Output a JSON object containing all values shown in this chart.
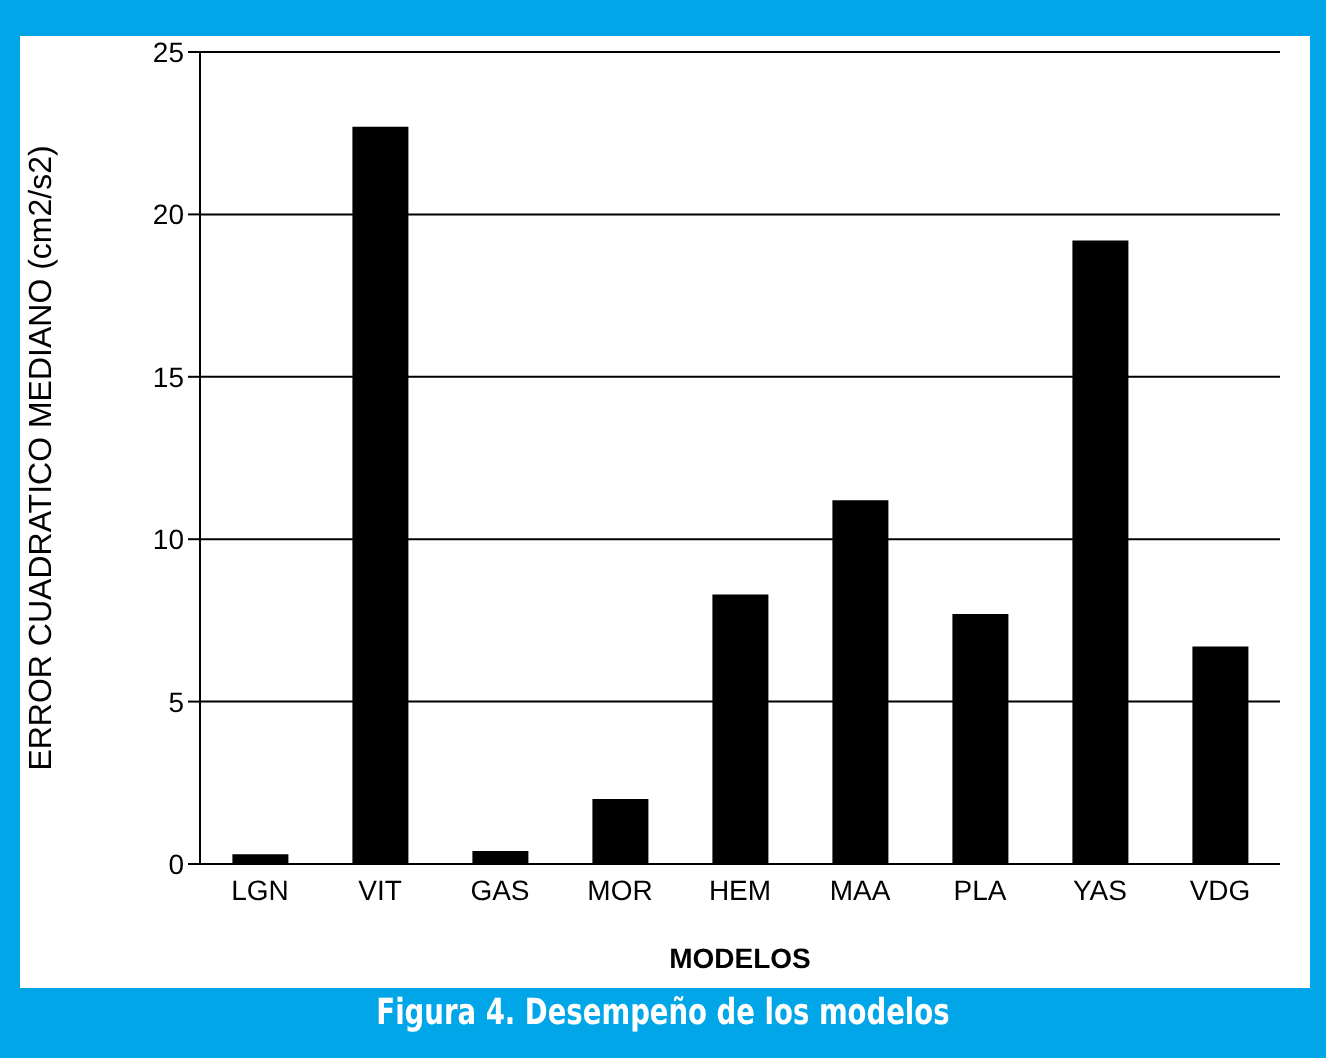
{
  "chart_data": {
    "type": "bar",
    "title": "Figura 4. Desempeño de los modelos",
    "xlabel": "MODELOS",
    "ylabel": "ERROR CUADRATICO MEDIANO (cm2/s2)",
    "categories": [
      "LGN",
      "VIT",
      "GAS",
      "MOR",
      "HEM",
      "MAA",
      "PLA",
      "YAS",
      "VDG"
    ],
    "values": [
      0.3,
      22.7,
      0.4,
      2.0,
      8.3,
      11.2,
      7.7,
      19.2,
      6.7
    ],
    "color": "#000000",
    "ylim": [
      0,
      25
    ],
    "yticks": [
      0,
      5,
      10,
      15,
      20,
      25
    ],
    "grid": "y"
  }
}
